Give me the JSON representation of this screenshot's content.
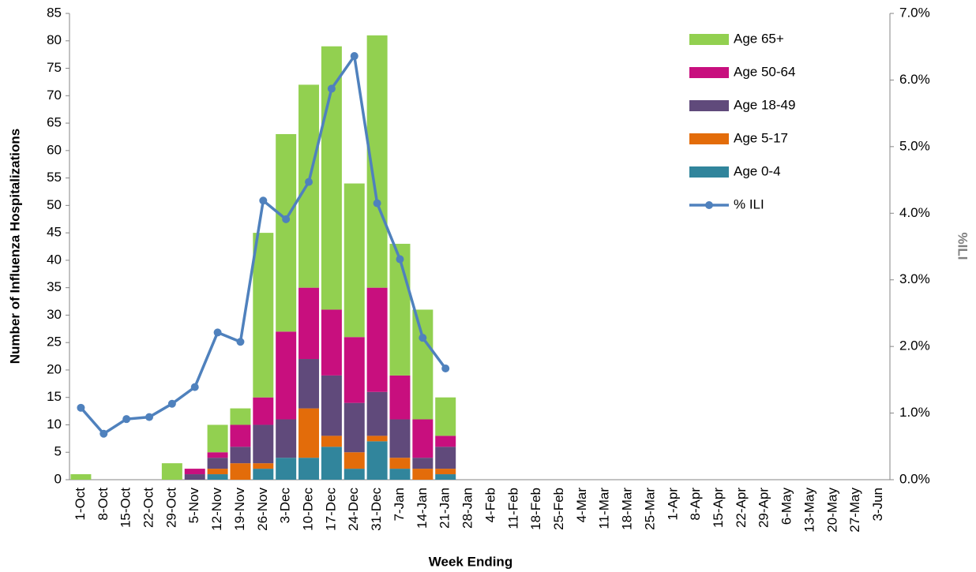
{
  "chart_data": {
    "type": "bar",
    "stacked": true,
    "x_label": "Week Ending",
    "y_label": "Number of Influenza Hospitalizations",
    "y2_label": "%ILI",
    "categories": [
      "1-Oct",
      "8-Oct",
      "15-Oct",
      "22-Oct",
      "29-Oct",
      "5-Nov",
      "12-Nov",
      "19-Nov",
      "26-Nov",
      "3-Dec",
      "10-Dec",
      "17-Dec",
      "24-Dec",
      "31-Dec",
      "7-Jan",
      "14-Jan",
      "21-Jan",
      "28-Jan",
      "4-Feb",
      "11-Feb",
      "18-Feb",
      "25-Feb",
      "4-Mar",
      "11-Mar",
      "18-Mar",
      "25-Mar",
      "1-Apr",
      "8-Apr",
      "15-Apr",
      "22-Apr",
      "29-Apr",
      "6-May",
      "13-May",
      "20-May",
      "27-May",
      "3-Jun"
    ],
    "series": [
      {
        "name": "Age 0-4",
        "color": "#31859c",
        "values": [
          0,
          0,
          0,
          0,
          0,
          0,
          1,
          0,
          2,
          4,
          4,
          6,
          2,
          7,
          2,
          0,
          1,
          null,
          null,
          null,
          null,
          null,
          null,
          null,
          null,
          null,
          null,
          null,
          null,
          null,
          null,
          null,
          null,
          null,
          null,
          null
        ]
      },
      {
        "name": "Age 5-17",
        "color": "#e36c0a",
        "values": [
          0,
          0,
          0,
          0,
          0,
          0,
          1,
          3,
          1,
          0,
          9,
          2,
          3,
          1,
          2,
          2,
          1,
          null,
          null,
          null,
          null,
          null,
          null,
          null,
          null,
          null,
          null,
          null,
          null,
          null,
          null,
          null,
          null,
          null,
          null,
          null
        ]
      },
      {
        "name": "Age 18-49",
        "color": "#604a7b",
        "values": [
          0,
          0,
          0,
          0,
          0,
          1,
          2,
          3,
          7,
          7,
          9,
          11,
          9,
          8,
          7,
          2,
          4,
          null,
          null,
          null,
          null,
          null,
          null,
          null,
          null,
          null,
          null,
          null,
          null,
          null,
          null,
          null,
          null,
          null,
          null,
          null
        ]
      },
      {
        "name": "Age 50-64",
        "color": "#c80f7e",
        "values": [
          0,
          0,
          0,
          0,
          0,
          1,
          1,
          4,
          5,
          16,
          13,
          12,
          12,
          19,
          8,
          7,
          2,
          null,
          null,
          null,
          null,
          null,
          null,
          null,
          null,
          null,
          null,
          null,
          null,
          null,
          null,
          null,
          null,
          null,
          null,
          null
        ]
      },
      {
        "name": "Age 65+",
        "color": "#92d050",
        "values": [
          1,
          0,
          0,
          0,
          3,
          0,
          5,
          3,
          30,
          36,
          37,
          48,
          28,
          46,
          24,
          20,
          7,
          null,
          null,
          null,
          null,
          null,
          null,
          null,
          null,
          null,
          null,
          null,
          null,
          null,
          null,
          null,
          null,
          null,
          null,
          null
        ]
      },
      {
        "name": "% ILI",
        "type": "line",
        "axis": "y2",
        "color": "#4f81bd",
        "values": [
          1.08,
          0.69,
          0.91,
          0.94,
          1.14,
          1.39,
          2.21,
          2.07,
          4.19,
          3.91,
          4.47,
          5.87,
          6.36,
          4.15,
          3.31,
          2.13,
          1.67,
          null,
          null,
          null,
          null,
          null,
          null,
          null,
          null,
          null,
          null,
          null,
          null,
          null,
          null,
          null,
          null,
          null,
          null,
          null
        ]
      }
    ],
    "ylim": [
      0,
      85
    ],
    "yticks": [
      0,
      5,
      10,
      15,
      20,
      25,
      30,
      35,
      40,
      45,
      50,
      55,
      60,
      65,
      70,
      75,
      80,
      85
    ],
    "y2lim": [
      0,
      7
    ],
    "y2ticks": [
      {
        "value": 0,
        "label": "0.0%"
      },
      {
        "value": 1,
        "label": "1.0%"
      },
      {
        "value": 2,
        "label": "2.0%"
      },
      {
        "value": 3,
        "label": "3.0%"
      },
      {
        "value": 4,
        "label": "4.0%"
      },
      {
        "value": 5,
        "label": "5.0%"
      },
      {
        "value": 6,
        "label": "6.0%"
      },
      {
        "value": 7,
        "label": "7.0%"
      }
    ],
    "grid": false,
    "legend": "upper-right"
  }
}
